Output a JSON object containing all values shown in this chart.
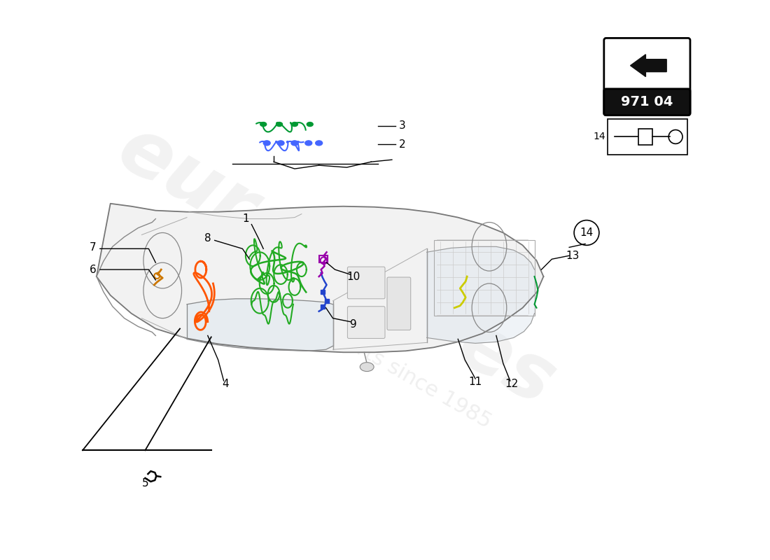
{
  "background_color": "#ffffff",
  "watermark_text": "eurospares",
  "watermark_subtext": "a passion for parts since 1985",
  "watermark_color_text": "#cccccc",
  "watermark_color_sub": "#cccccc",
  "page_code": "971 04",
  "car_outline_color": "#888888",
  "car_fill_color": "#f0f0f0",
  "label_color": "#000000",
  "wiring_green": "#22aa22",
  "wiring_orange": "#ff5500",
  "wiring_blue": "#2244cc",
  "wiring_purple": "#9900aa",
  "wiring_yellow": "#cccc00",
  "wiring_brown": "#cc7700",
  "wiring_blue2": "#4466ff",
  "wiring_green2": "#009933"
}
